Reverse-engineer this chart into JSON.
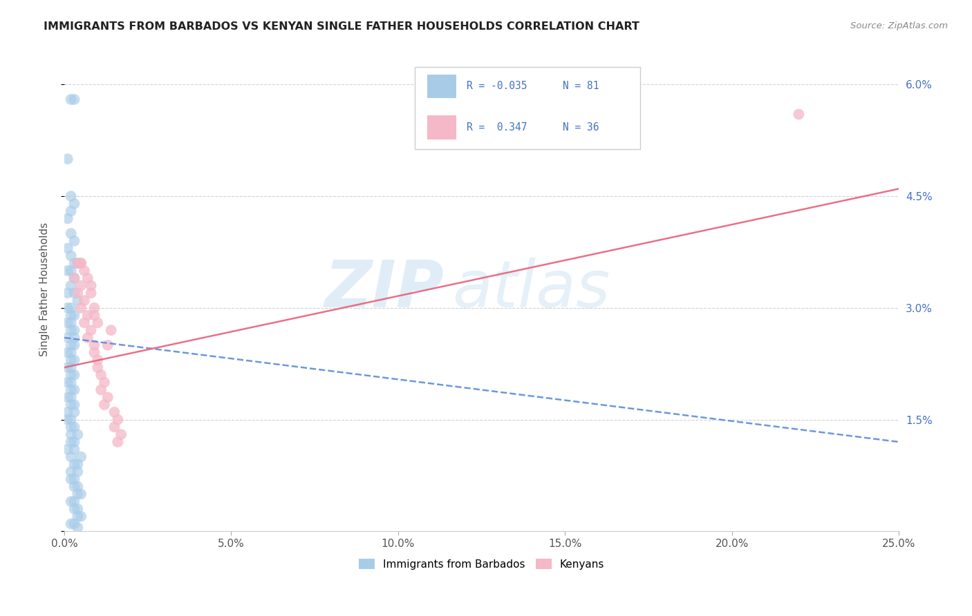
{
  "title": "IMMIGRANTS FROM BARBADOS VS KENYAN SINGLE FATHER HOUSEHOLDS CORRELATION CHART",
  "source": "Source: ZipAtlas.com",
  "ylabel": "Single Father Households",
  "xlim": [
    0.0,
    0.25
  ],
  "ylim": [
    0.0,
    0.065
  ],
  "blue_color": "#a8cce8",
  "pink_color": "#f4b8c8",
  "trend_blue_color": "#5b8dd9",
  "trend_pink_color": "#e8607a",
  "watermark_zip": "ZIP",
  "watermark_atlas": "atlas",
  "blue_r": -0.035,
  "pink_r": 0.347,
  "blue_n": 81,
  "pink_n": 36,
  "blue_trend_start_y": 0.026,
  "blue_trend_end_y": 0.012,
  "pink_trend_start_y": 0.022,
  "pink_trend_end_y": 0.046,
  "blue_x": [
    0.002,
    0.003,
    0.001,
    0.002,
    0.003,
    0.002,
    0.001,
    0.002,
    0.003,
    0.001,
    0.002,
    0.003,
    0.004,
    0.002,
    0.001,
    0.003,
    0.002,
    0.001,
    0.003,
    0.004,
    0.002,
    0.001,
    0.002,
    0.003,
    0.002,
    0.001,
    0.003,
    0.002,
    0.001,
    0.003,
    0.002,
    0.003,
    0.002,
    0.001,
    0.002,
    0.003,
    0.002,
    0.001,
    0.002,
    0.003,
    0.002,
    0.001,
    0.003,
    0.002,
    0.001,
    0.002,
    0.003,
    0.002,
    0.001,
    0.003,
    0.002,
    0.001,
    0.002,
    0.003,
    0.002,
    0.004,
    0.003,
    0.002,
    0.001,
    0.003,
    0.002,
    0.005,
    0.004,
    0.003,
    0.002,
    0.004,
    0.003,
    0.002,
    0.004,
    0.003,
    0.005,
    0.004,
    0.003,
    0.002,
    0.004,
    0.003,
    0.005,
    0.004,
    0.003,
    0.002,
    0.004
  ],
  "blue_y": [
    0.058,
    0.058,
    0.05,
    0.045,
    0.044,
    0.043,
    0.042,
    0.04,
    0.039,
    0.038,
    0.037,
    0.036,
    0.036,
    0.035,
    0.035,
    0.034,
    0.033,
    0.032,
    0.032,
    0.031,
    0.03,
    0.03,
    0.029,
    0.029,
    0.028,
    0.028,
    0.027,
    0.027,
    0.026,
    0.026,
    0.025,
    0.025,
    0.024,
    0.024,
    0.023,
    0.023,
    0.022,
    0.022,
    0.021,
    0.021,
    0.02,
    0.02,
    0.019,
    0.019,
    0.018,
    0.018,
    0.017,
    0.017,
    0.016,
    0.016,
    0.015,
    0.015,
    0.014,
    0.014,
    0.013,
    0.013,
    0.012,
    0.012,
    0.011,
    0.011,
    0.01,
    0.01,
    0.009,
    0.009,
    0.008,
    0.008,
    0.007,
    0.007,
    0.006,
    0.006,
    0.005,
    0.005,
    0.004,
    0.004,
    0.003,
    0.003,
    0.002,
    0.002,
    0.001,
    0.001,
    0.0005
  ],
  "pink_x": [
    0.004,
    0.005,
    0.003,
    0.005,
    0.004,
    0.006,
    0.005,
    0.007,
    0.006,
    0.008,
    0.007,
    0.009,
    0.005,
    0.006,
    0.007,
    0.008,
    0.009,
    0.01,
    0.008,
    0.009,
    0.01,
    0.011,
    0.009,
    0.01,
    0.012,
    0.011,
    0.013,
    0.012,
    0.014,
    0.013,
    0.015,
    0.016,
    0.015,
    0.017,
    0.016,
    0.22
  ],
  "pink_y": [
    0.036,
    0.036,
    0.034,
    0.033,
    0.032,
    0.031,
    0.03,
    0.029,
    0.028,
    0.027,
    0.026,
    0.025,
    0.036,
    0.035,
    0.034,
    0.033,
    0.024,
    0.023,
    0.032,
    0.03,
    0.022,
    0.021,
    0.029,
    0.028,
    0.02,
    0.019,
    0.018,
    0.017,
    0.027,
    0.025,
    0.016,
    0.015,
    0.014,
    0.013,
    0.012,
    0.056
  ]
}
